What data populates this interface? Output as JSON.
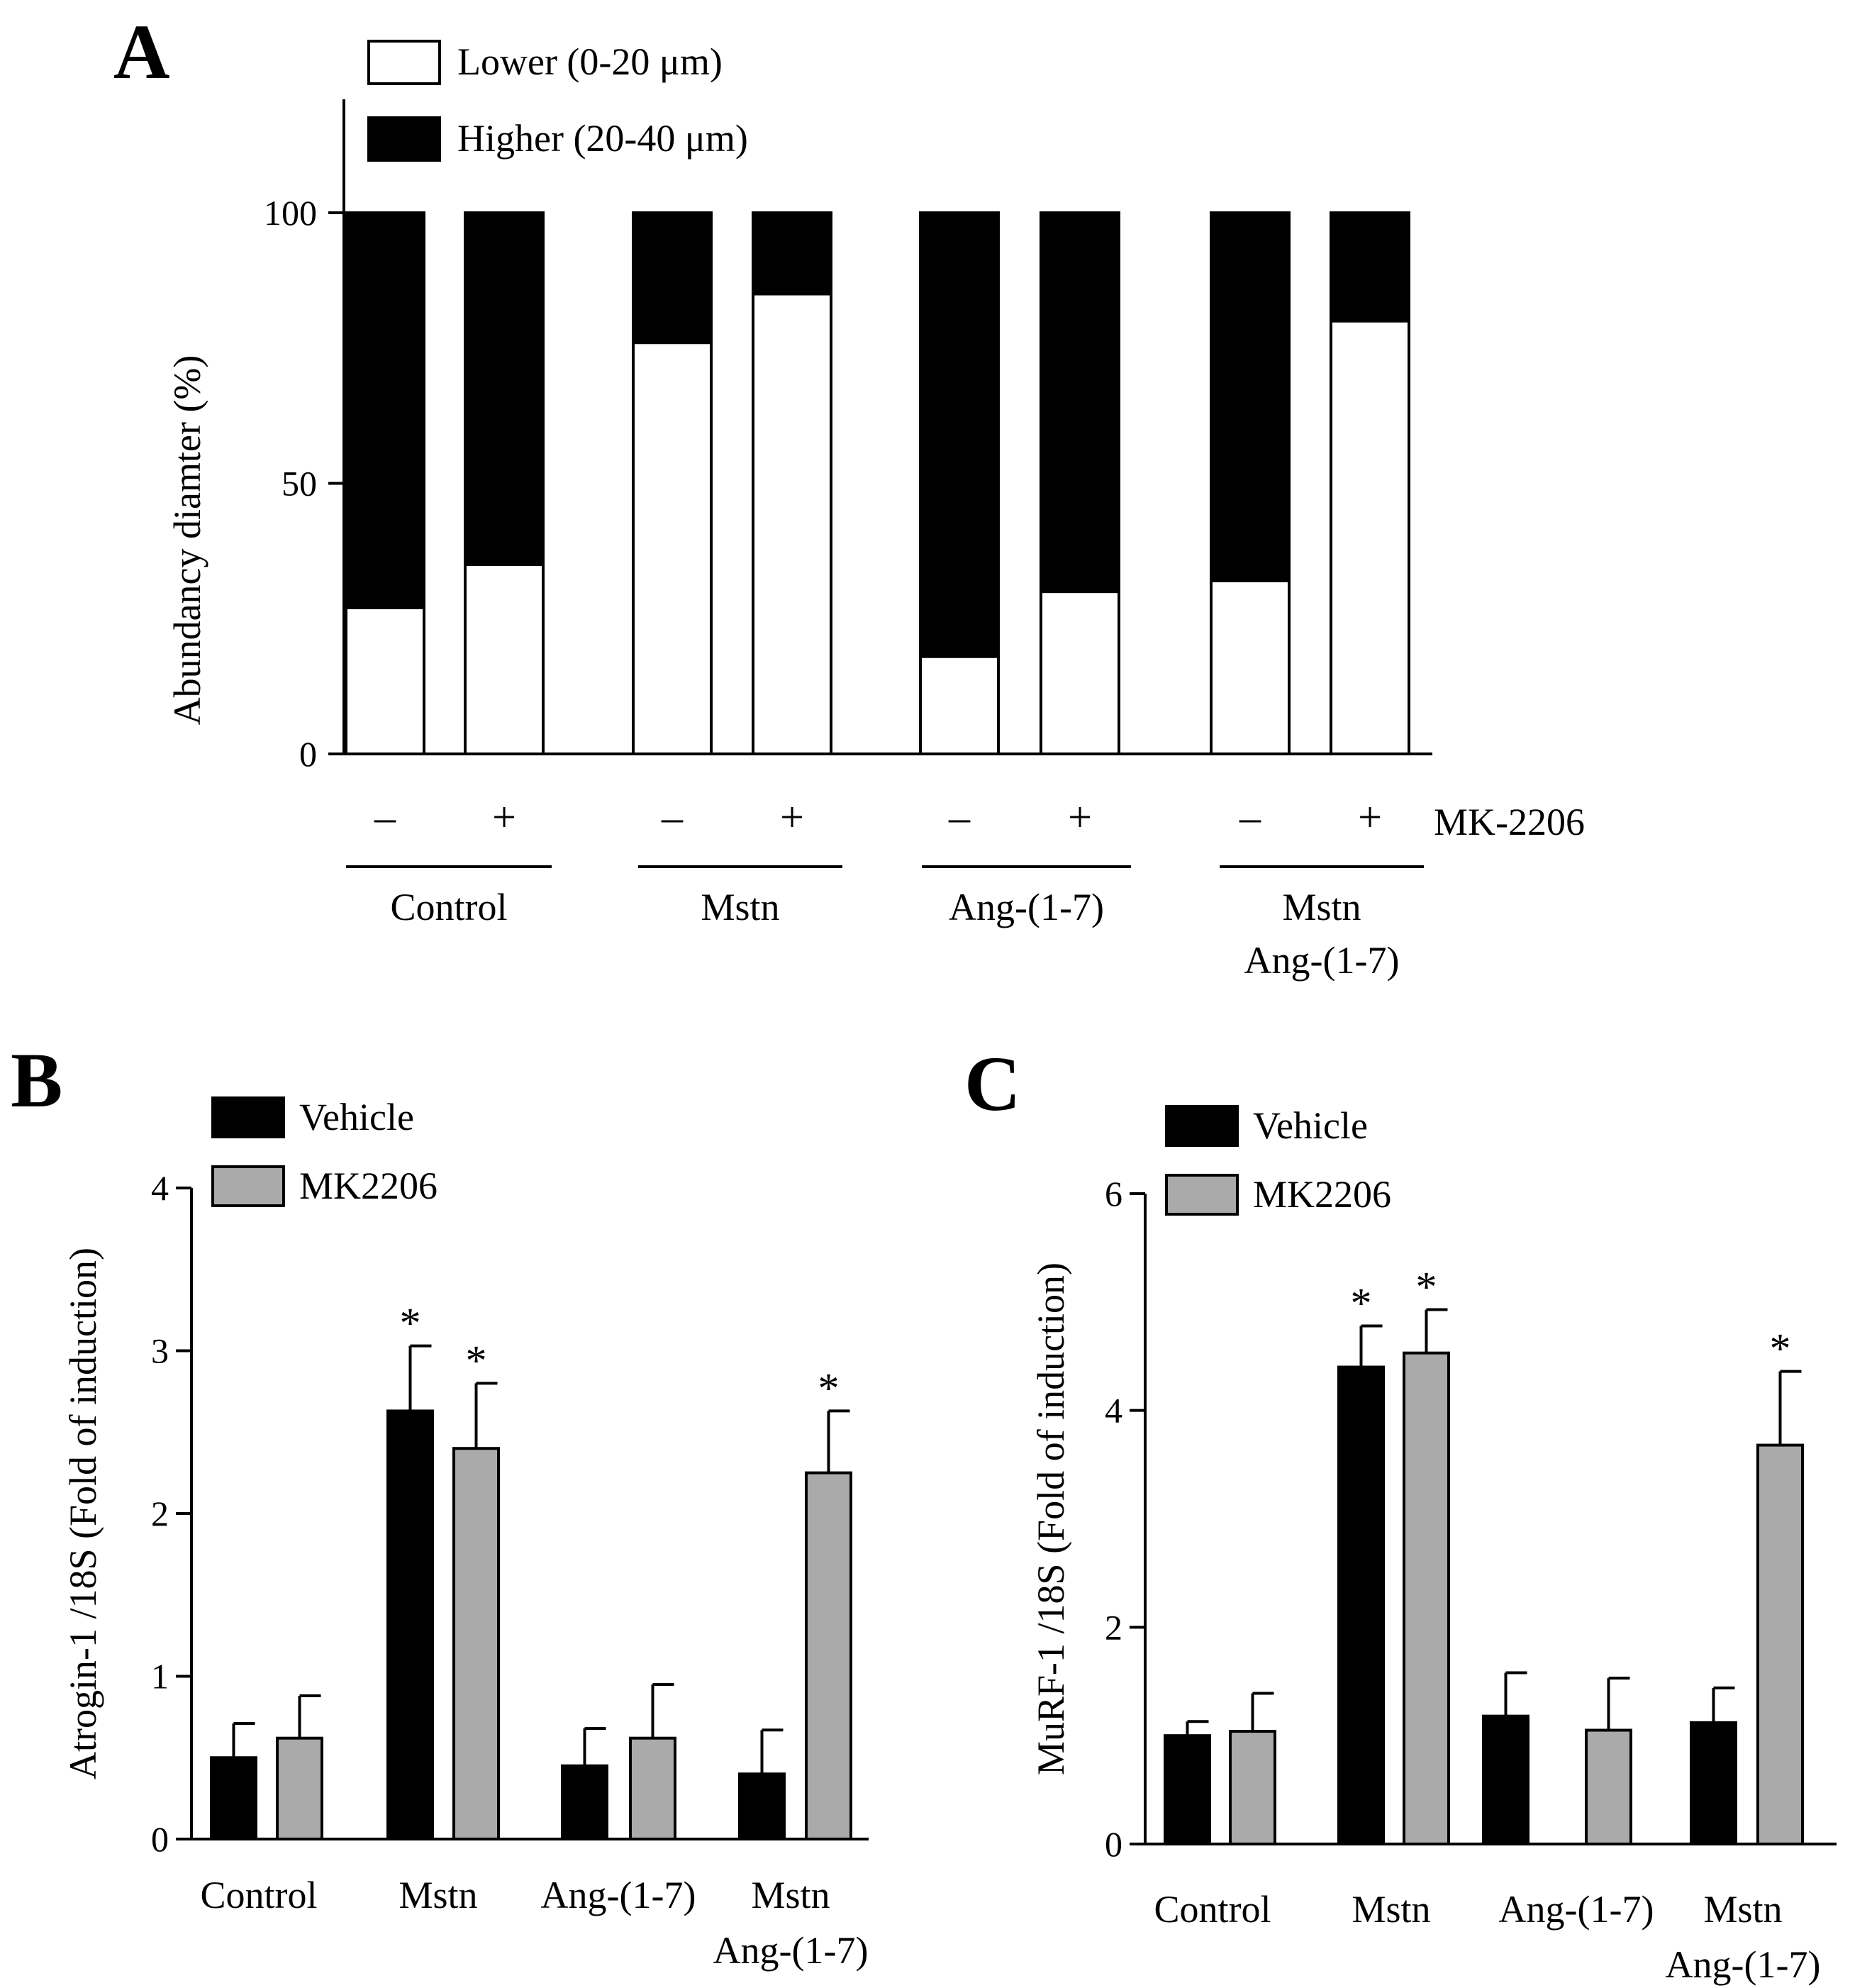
{
  "chart_data": [
    {
      "panel": "A",
      "type": "bar",
      "stacked": true,
      "ylabel": "Abundancy diamter (%)",
      "ylim": [
        0,
        100
      ],
      "yticks": [
        0,
        50,
        100
      ],
      "legend": [
        "Lower (0-20 μm)",
        "Higher (20-40 μm)"
      ],
      "treatment_label": "MK-2206",
      "treatment_signs": [
        "–",
        "+",
        "–",
        "+",
        "–",
        "+",
        "–",
        "+"
      ],
      "groups": [
        [
          "Control"
        ],
        [
          "Mstn"
        ],
        [
          "Ang-(1-7)"
        ],
        [
          "Mstn",
          "Ang-(1-7)"
        ]
      ],
      "series": [
        {
          "name": "Lower (0-20 μm)",
          "color": "#ffffff",
          "values": [
            27,
            35,
            76,
            85,
            18,
            30,
            32,
            80
          ]
        },
        {
          "name": "Higher (20-40 μm)",
          "color": "#000000",
          "values": [
            73,
            65,
            24,
            15,
            82,
            70,
            68,
            20
          ]
        }
      ]
    },
    {
      "panel": "B",
      "type": "bar",
      "ylabel": "Atrogin-1 /18S (Fold of induction)",
      "ylim": [
        0,
        4
      ],
      "yticks": [
        0,
        1,
        2,
        3,
        4
      ],
      "categories": [
        [
          "Control"
        ],
        [
          "Mstn"
        ],
        [
          "Ang-(1-7)"
        ],
        [
          "Mstn",
          "Ang-(1-7)"
        ]
      ],
      "series": [
        {
          "name": "Vehicle",
          "color": "#000000",
          "values": [
            0.5,
            2.63,
            0.45,
            0.4
          ],
          "errors": [
            0.21,
            0.4,
            0.23,
            0.27
          ],
          "significant": [
            false,
            true,
            false,
            false
          ]
        },
        {
          "name": "MK2206",
          "color": "#aaaaaa",
          "values": [
            0.62,
            2.4,
            0.62,
            2.25
          ],
          "errors": [
            0.26,
            0.4,
            0.33,
            0.38
          ],
          "significant": [
            false,
            true,
            false,
            true
          ]
        }
      ],
      "annotation_symbol": "*"
    },
    {
      "panel": "C",
      "type": "bar",
      "ylabel": "MuRF-1 /18S (Fold of induction)",
      "ylim": [
        0,
        6
      ],
      "yticks": [
        0,
        2,
        4,
        6
      ],
      "categories": [
        [
          "Control"
        ],
        [
          "Mstn"
        ],
        [
          "Ang-(1-7)"
        ],
        [
          "Mstn",
          "Ang-(1-7)"
        ]
      ],
      "series": [
        {
          "name": "Vehicle",
          "color": "#000000",
          "values": [
            1.0,
            4.4,
            1.18,
            1.12
          ],
          "errors": [
            0.13,
            0.38,
            0.4,
            0.32
          ],
          "significant": [
            false,
            true,
            false,
            false
          ]
        },
        {
          "name": "MK2206",
          "color": "#aaaaaa",
          "values": [
            1.04,
            4.53,
            1.05,
            3.68
          ],
          "errors": [
            0.35,
            0.4,
            0.48,
            0.68
          ],
          "significant": [
            false,
            true,
            false,
            true
          ]
        }
      ],
      "annotation_symbol": "*"
    }
  ]
}
